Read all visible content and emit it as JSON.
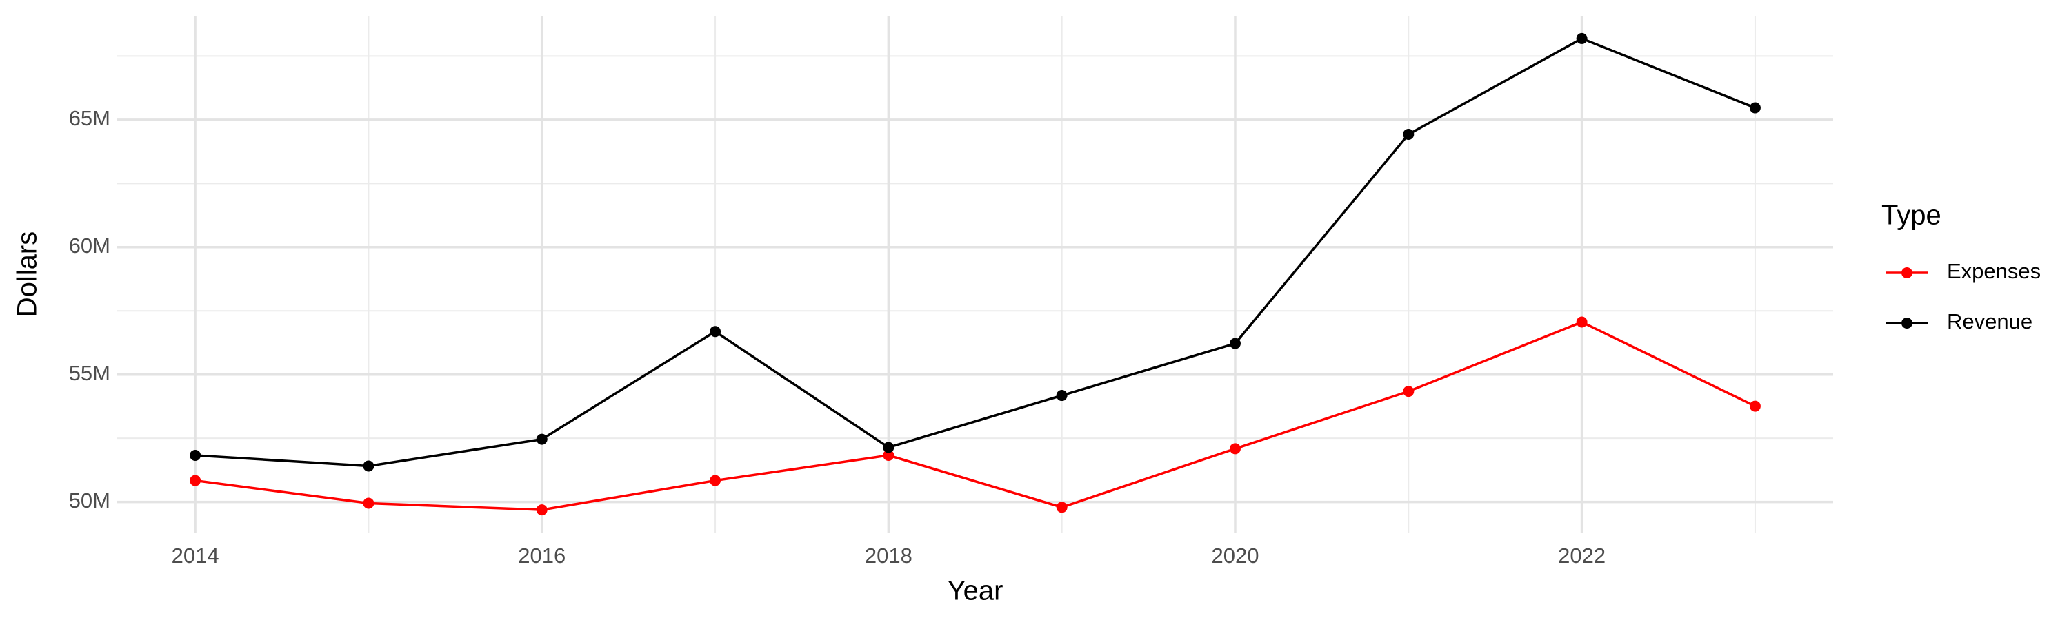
{
  "chart_data": {
    "type": "line",
    "x_label": "Year",
    "y_label": "Dollars",
    "legend_title": "Type",
    "legend_position": "right",
    "grid": true,
    "x": [
      2014,
      2015,
      2016,
      2017,
      2018,
      2019,
      2020,
      2021,
      2022,
      2023
    ],
    "series": [
      {
        "name": "Expenses",
        "color": "#ff0000",
        "values": [
          50840000,
          49950000,
          49690000,
          50840000,
          51830000,
          49790000,
          52090000,
          54340000,
          57060000,
          53760000
        ]
      },
      {
        "name": "Revenue",
        "color": "#000000",
        "values": [
          51830000,
          51410000,
          52460000,
          56690000,
          52140000,
          54180000,
          56220000,
          64430000,
          68190000,
          65470000
        ]
      }
    ],
    "xlim": [
      2013.55,
      2023.45
    ],
    "xticks": [
      2014,
      2016,
      2018,
      2020,
      2022
    ],
    "ylim": [
      48800000,
      69080000
    ],
    "yticks": [
      {
        "value": 50000000,
        "label": "50M"
      },
      {
        "value": 55000000,
        "label": "55M"
      },
      {
        "value": 60000000,
        "label": "60M"
      },
      {
        "value": 65000000,
        "label": "65M"
      }
    ]
  }
}
